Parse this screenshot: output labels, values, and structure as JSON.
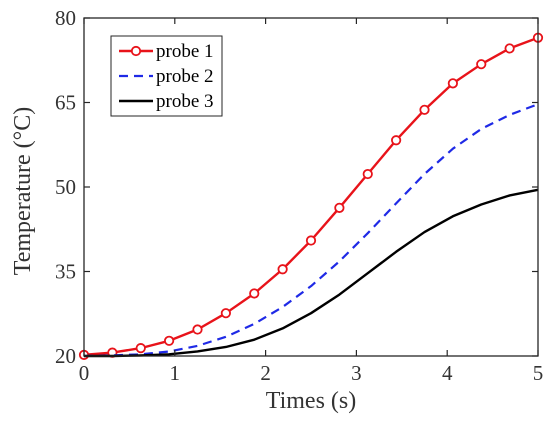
{
  "chart_data": {
    "type": "line",
    "xlabel": "Times (s)",
    "ylabel": "Temperature (°C)",
    "xlim": [
      0,
      5
    ],
    "ylim": [
      20,
      80
    ],
    "xticks": [
      0,
      1,
      2,
      3,
      4,
      5
    ],
    "yticks": [
      20,
      35,
      50,
      65,
      80
    ],
    "grid": false,
    "legend_position": "top-left",
    "series": [
      {
        "name": "probe 1",
        "color": "#e8131a",
        "style": "solid-circle-markers",
        "x": [
          0,
          0.3125,
          0.625,
          0.9375,
          1.25,
          1.5625,
          1.875,
          2.1875,
          2.5,
          2.8125,
          3.125,
          3.4375,
          3.75,
          4.0625,
          4.375,
          4.6875,
          5
        ],
        "y": [
          20.2,
          20.6,
          21.4,
          22.7,
          24.7,
          27.6,
          31.1,
          35.4,
          40.5,
          46.3,
          52.3,
          58.3,
          63.7,
          68.4,
          71.8,
          74.6,
          76.5
        ]
      },
      {
        "name": "probe 2",
        "color": "#1f2ae6",
        "style": "dashed",
        "x": [
          0,
          0.3125,
          0.625,
          0.9375,
          1.25,
          1.5625,
          1.875,
          2.1875,
          2.5,
          2.8125,
          3.125,
          3.4375,
          3.75,
          4.0625,
          4.375,
          4.6875,
          5
        ],
        "y": [
          20.0,
          20.1,
          20.3,
          20.8,
          21.8,
          23.4,
          25.7,
          28.7,
          32.4,
          36.8,
          41.8,
          47.1,
          52.3,
          56.8,
          60.3,
          62.8,
          64.7
        ]
      },
      {
        "name": "probe 3",
        "color": "#000000",
        "style": "solid",
        "x": [
          0,
          0.3125,
          0.625,
          0.9375,
          1.25,
          1.5625,
          1.875,
          2.1875,
          2.5,
          2.8125,
          3.125,
          3.4375,
          3.75,
          4.0625,
          4.375,
          4.6875,
          5
        ],
        "y": [
          20.0,
          20.0,
          20.1,
          20.3,
          20.8,
          21.6,
          22.9,
          24.9,
          27.6,
          30.9,
          34.7,
          38.5,
          42.0,
          44.8,
          46.9,
          48.5,
          49.5
        ]
      }
    ]
  }
}
